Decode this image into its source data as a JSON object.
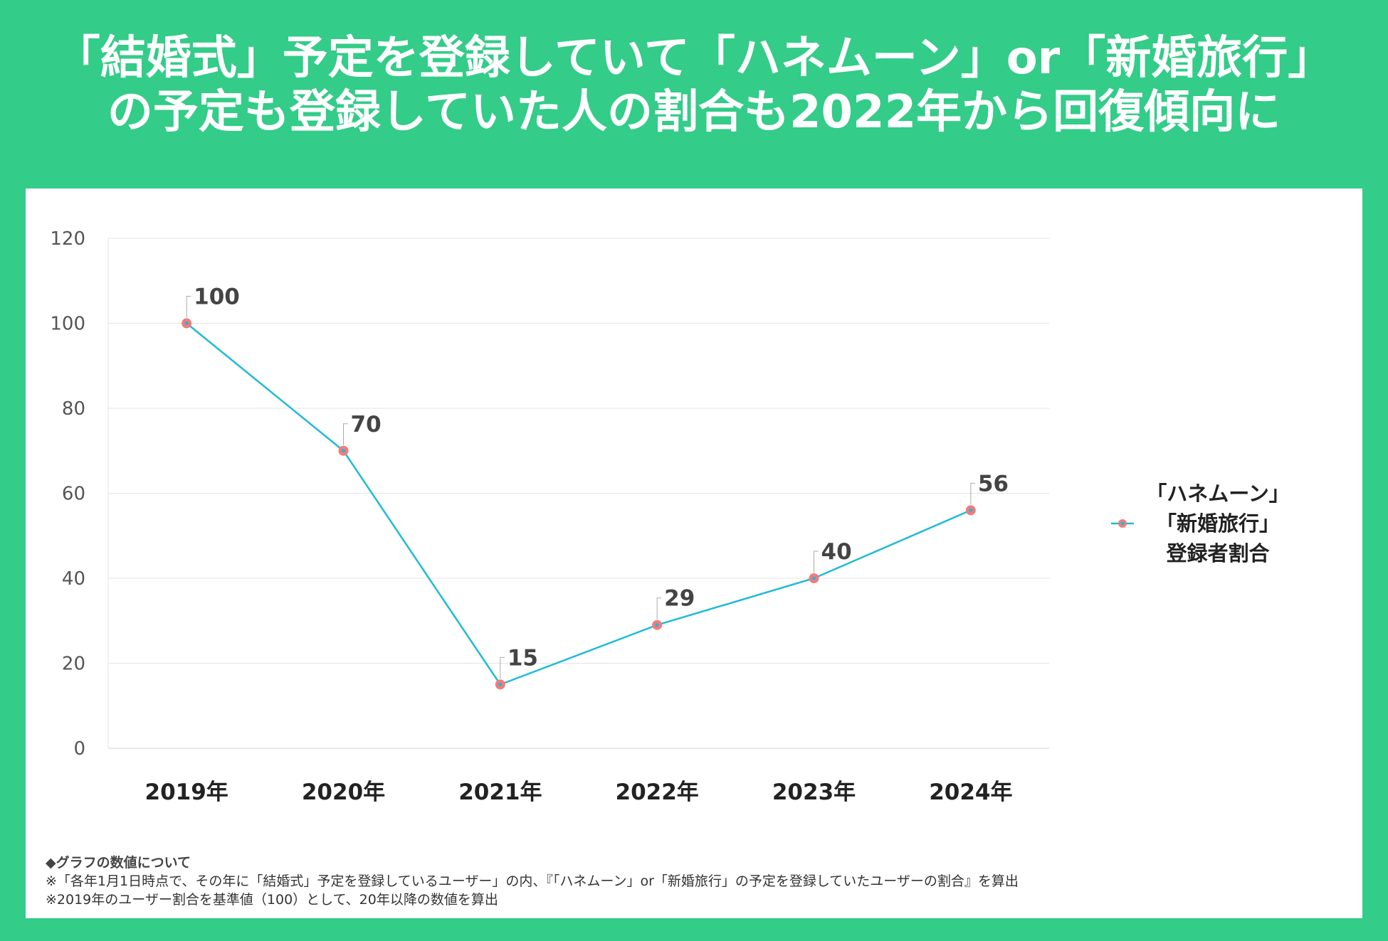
{
  "title": {
    "line1": "「結婚式」予定を登録していて「ハネムーン」or「新婚旅行」",
    "line2": "の予定も登録していた人の割合も2022年から回復傾向に"
  },
  "chart_data": {
    "type": "line",
    "categories": [
      "2019年",
      "2020年",
      "2021年",
      "2022年",
      "2023年",
      "2024年"
    ],
    "series": [
      {
        "name": "「ハネムーン」「新婚旅行」登録者割合",
        "values": [
          100,
          70,
          15,
          29,
          40,
          56
        ],
        "labels": [
          "100",
          "70",
          "15",
          "29",
          "40",
          "56"
        ]
      }
    ],
    "ylim": [
      0,
      120
    ],
    "yticks": [
      "0",
      "20",
      "40",
      "60",
      "80",
      "100",
      "120"
    ],
    "grid": true,
    "legend_position": "right",
    "legend_lines": [
      "「ハネムーン」",
      "「新婚旅行」",
      "登録者割合"
    ],
    "line_color": "#1fbad6",
    "marker_color": "#f47b7b"
  },
  "notes": {
    "heading": "◆グラフの数値について",
    "line1": "※「各年1月1日時点で、その年に「結婚式」予定を登録しているユーザー」の内、『「ハネムーン」or「新婚旅行」の予定を登録していたユーザーの割合』を算出",
    "line2": "※2019年のユーザー割合を基準値（100）として、20年以降の数値を算出"
  }
}
